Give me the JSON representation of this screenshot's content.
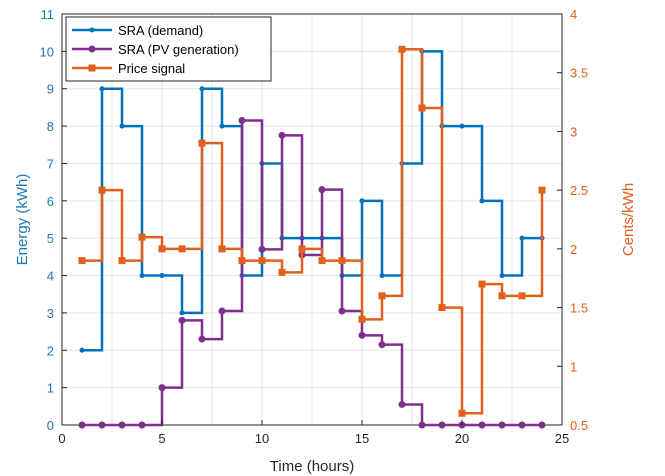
{
  "chart_data": {
    "type": "line",
    "step": true,
    "xlabel": "Time (hours)",
    "ylabel_left": "Energy (kWh)",
    "ylabel_right": "Cents/kWh",
    "xlim": [
      0,
      25
    ],
    "ylim_left": [
      0,
      11
    ],
    "ylim_right": [
      0.5,
      4
    ],
    "xticks": [
      0,
      5,
      10,
      15,
      20,
      25
    ],
    "yticks_left": [
      0,
      1,
      2,
      3,
      4,
      5,
      6,
      7,
      8,
      9,
      10,
      11
    ],
    "yticks_right": [
      "0.5",
      "1",
      "1.5",
      "2",
      "2.5",
      "3",
      "3.5",
      "4"
    ],
    "grid": true,
    "legend_position": "top-left",
    "x": [
      1,
      2,
      3,
      4,
      5,
      6,
      7,
      8,
      9,
      10,
      11,
      12,
      13,
      14,
      15,
      16,
      17,
      18,
      19,
      20,
      21,
      22,
      23,
      24
    ],
    "series": [
      {
        "name": "SRA (demand)",
        "axis": "left",
        "color": "#0072bd",
        "marker": "dot",
        "values": [
          2,
          9,
          8,
          4,
          4,
          3,
          9,
          8,
          4,
          7,
          5,
          5,
          5,
          4,
          6,
          4,
          7,
          10,
          8,
          8,
          6,
          4,
          5,
          5
        ]
      },
      {
        "name": "SRA (PV generation)",
        "axis": "left",
        "color": "#7e2f8e",
        "marker": "circle",
        "values": [
          0,
          0,
          0,
          0,
          1,
          2.8,
          2.3,
          3.05,
          8.15,
          4.7,
          7.75,
          4.55,
          6.3,
          3.05,
          2.4,
          2.15,
          0.55,
          0,
          0,
          0,
          0,
          0,
          0,
          0
        ]
      },
      {
        "name": "Price signal",
        "axis": "right",
        "color": "#e0601c",
        "marker": "square",
        "values": [
          1.9,
          2.5,
          1.9,
          2.1,
          2.0,
          2.0,
          2.9,
          2.0,
          1.9,
          1.9,
          1.8,
          2.0,
          1.9,
          1.9,
          1.4,
          1.6,
          3.7,
          3.2,
          1.5,
          0.6,
          1.7,
          1.6,
          1.6,
          2.5
        ]
      }
    ]
  }
}
